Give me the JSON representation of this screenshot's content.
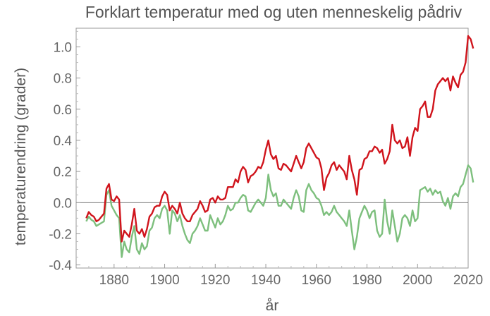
{
  "chart_data": {
    "type": "line",
    "title": "Forklart temperatur med og uten menneskelig pådriv",
    "xlabel": "år",
    "ylabel": "temperaturendring (grader)",
    "xlim": [
      1865,
      2020
    ],
    "ylim": [
      -0.42,
      1.12
    ],
    "xticks": [
      1880,
      1900,
      1920,
      1940,
      1960,
      1980,
      2000,
      2020
    ],
    "xtick_labels": [
      "1880",
      "1900",
      "1920",
      "1940",
      "1960",
      "1980",
      "2000",
      "2020"
    ],
    "yticks": [
      -0.4,
      -0.2,
      0.0,
      0.2,
      0.4,
      0.6,
      0.8,
      1.0
    ],
    "ytick_labels": [
      "-0.4",
      "-0.2",
      "0.0",
      "0.2",
      "0.4",
      "0.6",
      "0.8",
      "1.0"
    ],
    "zero_line": true,
    "grid": false,
    "series": [
      {
        "color": "#d0141c",
        "points": [
          [
            1869,
            -0.1
          ],
          [
            1870,
            -0.06
          ],
          [
            1871,
            -0.08
          ],
          [
            1872,
            -0.09
          ],
          [
            1873,
            -0.12
          ],
          [
            1874,
            -0.11
          ],
          [
            1875,
            -0.09
          ],
          [
            1876,
            -0.07
          ],
          [
            1877,
            0.09
          ],
          [
            1878,
            0.12
          ],
          [
            1879,
            0.02
          ],
          [
            1880,
            0.01
          ],
          [
            1881,
            0.04
          ],
          [
            1882,
            0.02
          ],
          [
            1883,
            -0.25
          ],
          [
            1884,
            -0.18
          ],
          [
            1885,
            -0.2
          ],
          [
            1886,
            -0.22
          ],
          [
            1887,
            -0.14
          ],
          [
            1888,
            -0.04
          ],
          [
            1889,
            -0.18
          ],
          [
            1890,
            -0.2
          ],
          [
            1891,
            -0.17
          ],
          [
            1892,
            -0.22
          ],
          [
            1893,
            -0.17
          ],
          [
            1894,
            -0.09
          ],
          [
            1895,
            -0.07
          ],
          [
            1896,
            -0.03
          ],
          [
            1897,
            -0.02
          ],
          [
            1898,
            -0.02
          ],
          [
            1899,
            0.04
          ],
          [
            1900,
            0.07
          ],
          [
            1901,
            0.05
          ],
          [
            1902,
            -0.05
          ],
          [
            1903,
            -0.02
          ],
          [
            1904,
            -0.04
          ],
          [
            1905,
            -0.07
          ],
          [
            1906,
            0.0
          ],
          [
            1907,
            -0.07
          ],
          [
            1908,
            -0.1
          ],
          [
            1909,
            -0.12
          ],
          [
            1910,
            -0.12
          ],
          [
            1911,
            -0.08
          ],
          [
            1912,
            -0.06
          ],
          [
            1913,
            -0.04
          ],
          [
            1914,
            0.01
          ],
          [
            1915,
            -0.02
          ],
          [
            1916,
            -0.06
          ],
          [
            1917,
            -0.05
          ],
          [
            1918,
            0.02
          ],
          [
            1919,
            0.03
          ],
          [
            1920,
            0.0
          ],
          [
            1921,
            0.04
          ],
          [
            1922,
            0.02
          ],
          [
            1923,
            0.02
          ],
          [
            1924,
            0.03
          ],
          [
            1925,
            0.1
          ],
          [
            1926,
            0.1
          ],
          [
            1927,
            0.1
          ],
          [
            1928,
            0.15
          ],
          [
            1929,
            0.13
          ],
          [
            1930,
            0.2
          ],
          [
            1931,
            0.23
          ],
          [
            1932,
            0.21
          ],
          [
            1933,
            0.13
          ],
          [
            1934,
            0.17
          ],
          [
            1935,
            0.18
          ],
          [
            1936,
            0.2
          ],
          [
            1937,
            0.23
          ],
          [
            1938,
            0.22
          ],
          [
            1939,
            0.26
          ],
          [
            1940,
            0.34
          ],
          [
            1941,
            0.4
          ],
          [
            1942,
            0.31
          ],
          [
            1943,
            0.28
          ],
          [
            1944,
            0.3
          ],
          [
            1945,
            0.22
          ],
          [
            1946,
            0.21
          ],
          [
            1947,
            0.25
          ],
          [
            1948,
            0.24
          ],
          [
            1949,
            0.22
          ],
          [
            1950,
            0.2
          ],
          [
            1951,
            0.25
          ],
          [
            1952,
            0.3
          ],
          [
            1953,
            0.26
          ],
          [
            1954,
            0.22
          ],
          [
            1955,
            0.26
          ],
          [
            1956,
            0.35
          ],
          [
            1957,
            0.38
          ],
          [
            1958,
            0.35
          ],
          [
            1959,
            0.32
          ],
          [
            1960,
            0.29
          ],
          [
            1961,
            0.28
          ],
          [
            1962,
            0.22
          ],
          [
            1963,
            0.08
          ],
          [
            1964,
            0.16
          ],
          [
            1965,
            0.19
          ],
          [
            1966,
            0.24
          ],
          [
            1967,
            0.26
          ],
          [
            1968,
            0.21
          ],
          [
            1969,
            0.24
          ],
          [
            1970,
            0.22
          ],
          [
            1971,
            0.2
          ],
          [
            1972,
            0.15
          ],
          [
            1973,
            0.3
          ],
          [
            1974,
            0.21
          ],
          [
            1975,
            0.15
          ],
          [
            1976,
            0.05
          ],
          [
            1977,
            0.21
          ],
          [
            1978,
            0.22
          ],
          [
            1979,
            0.28
          ],
          [
            1980,
            0.29
          ],
          [
            1981,
            0.33
          ],
          [
            1982,
            0.33
          ],
          [
            1983,
            0.36
          ],
          [
            1984,
            0.35
          ],
          [
            1985,
            0.32
          ],
          [
            1986,
            0.34
          ],
          [
            1987,
            0.25
          ],
          [
            1988,
            0.28
          ],
          [
            1989,
            0.33
          ],
          [
            1990,
            0.5
          ],
          [
            1991,
            0.4
          ],
          [
            1992,
            0.38
          ],
          [
            1993,
            0.4
          ],
          [
            1994,
            0.35
          ],
          [
            1995,
            0.36
          ],
          [
            1996,
            0.42
          ],
          [
            1997,
            0.3
          ],
          [
            1998,
            0.42
          ],
          [
            1999,
            0.48
          ],
          [
            2000,
            0.46
          ],
          [
            2001,
            0.6
          ],
          [
            2002,
            0.62
          ],
          [
            2003,
            0.65
          ],
          [
            2004,
            0.55
          ],
          [
            2005,
            0.55
          ],
          [
            2006,
            0.6
          ],
          [
            2007,
            0.72
          ],
          [
            2008,
            0.76
          ],
          [
            2009,
            0.78
          ],
          [
            2010,
            0.8
          ],
          [
            2011,
            0.78
          ],
          [
            2012,
            0.8
          ],
          [
            2013,
            0.72
          ],
          [
            2014,
            0.81
          ],
          [
            2015,
            0.77
          ],
          [
            2016,
            0.74
          ],
          [
            2017,
            0.82
          ],
          [
            2018,
            0.84
          ],
          [
            2019,
            0.9
          ],
          [
            2020,
            1.07
          ],
          [
            2021,
            1.05
          ],
          [
            2022,
            0.99
          ]
        ]
      },
      {
        "color": "#7dbf7d",
        "points": [
          [
            1869,
            -0.12
          ],
          [
            1870,
            -0.09
          ],
          [
            1871,
            -0.11
          ],
          [
            1872,
            -0.12
          ],
          [
            1873,
            -0.15
          ],
          [
            1874,
            -0.14
          ],
          [
            1875,
            -0.13
          ],
          [
            1876,
            -0.12
          ],
          [
            1877,
            0.05
          ],
          [
            1878,
            0.08
          ],
          [
            1879,
            -0.02
          ],
          [
            1880,
            -0.05
          ],
          [
            1881,
            -0.08
          ],
          [
            1882,
            -0.1
          ],
          [
            1883,
            -0.35
          ],
          [
            1884,
            -0.25
          ],
          [
            1885,
            -0.3
          ],
          [
            1886,
            -0.32
          ],
          [
            1887,
            -0.22
          ],
          [
            1888,
            -0.15
          ],
          [
            1889,
            -0.3
          ],
          [
            1890,
            -0.33
          ],
          [
            1891,
            -0.26
          ],
          [
            1892,
            -0.3
          ],
          [
            1893,
            -0.28
          ],
          [
            1894,
            -0.18
          ],
          [
            1895,
            -0.16
          ],
          [
            1896,
            -0.1
          ],
          [
            1897,
            -0.08
          ],
          [
            1898,
            -0.1
          ],
          [
            1899,
            -0.04
          ],
          [
            1900,
            -0.02
          ],
          [
            1901,
            -0.05
          ],
          [
            1902,
            -0.2
          ],
          [
            1903,
            -0.05
          ],
          [
            1904,
            -0.07
          ],
          [
            1905,
            -0.12
          ],
          [
            1906,
            -0.08
          ],
          [
            1907,
            -0.15
          ],
          [
            1908,
            -0.2
          ],
          [
            1909,
            -0.24
          ],
          [
            1910,
            -0.26
          ],
          [
            1911,
            -0.2
          ],
          [
            1912,
            -0.18
          ],
          [
            1913,
            -0.15
          ],
          [
            1914,
            -0.1
          ],
          [
            1915,
            -0.14
          ],
          [
            1916,
            -0.18
          ],
          [
            1917,
            -0.18
          ],
          [
            1918,
            -0.08
          ],
          [
            1919,
            -0.12
          ],
          [
            1920,
            -0.16
          ],
          [
            1921,
            -0.1
          ],
          [
            1922,
            -0.14
          ],
          [
            1923,
            -0.12
          ],
          [
            1924,
            -0.08
          ],
          [
            1925,
            -0.02
          ],
          [
            1926,
            -0.05
          ],
          [
            1927,
            -0.04
          ],
          [
            1928,
            0.0
          ],
          [
            1929,
            0.0
          ],
          [
            1930,
            0.03
          ],
          [
            1931,
            0.05
          ],
          [
            1932,
            0.04
          ],
          [
            1933,
            -0.05
          ],
          [
            1934,
            -0.06
          ],
          [
            1935,
            -0.03
          ],
          [
            1936,
            0.0
          ],
          [
            1937,
            0.02
          ],
          [
            1938,
            0.0
          ],
          [
            1939,
            -0.02
          ],
          [
            1940,
            0.03
          ],
          [
            1941,
            0.18
          ],
          [
            1942,
            0.08
          ],
          [
            1943,
            0.04
          ],
          [
            1944,
            0.06
          ],
          [
            1945,
            -0.02
          ],
          [
            1946,
            -0.02
          ],
          [
            1947,
            0.02
          ],
          [
            1948,
            0.0
          ],
          [
            1949,
            -0.02
          ],
          [
            1950,
            -0.04
          ],
          [
            1951,
            0.03
          ],
          [
            1952,
            0.08
          ],
          [
            1953,
            0.04
          ],
          [
            1954,
            -0.05
          ],
          [
            1955,
            -0.06
          ],
          [
            1956,
            0.08
          ],
          [
            1957,
            0.12
          ],
          [
            1958,
            0.08
          ],
          [
            1959,
            0.06
          ],
          [
            1960,
            0.03
          ],
          [
            1961,
            0.02
          ],
          [
            1962,
            -0.02
          ],
          [
            1963,
            -0.08
          ],
          [
            1964,
            -0.06
          ],
          [
            1965,
            -0.08
          ],
          [
            1966,
            -0.06
          ],
          [
            1967,
            -0.02
          ],
          [
            1968,
            -0.06
          ],
          [
            1969,
            -0.08
          ],
          [
            1970,
            -0.1
          ],
          [
            1971,
            -0.12
          ],
          [
            1972,
            -0.15
          ],
          [
            1973,
            -0.05
          ],
          [
            1974,
            -0.18
          ],
          [
            1975,
            -0.3
          ],
          [
            1976,
            -0.22
          ],
          [
            1977,
            -0.1
          ],
          [
            1978,
            -0.06
          ],
          [
            1979,
            -0.02
          ],
          [
            1980,
            -0.05
          ],
          [
            1981,
            -0.1
          ],
          [
            1982,
            -0.06
          ],
          [
            1983,
            -0.05
          ],
          [
            1984,
            -0.18
          ],
          [
            1985,
            -0.22
          ],
          [
            1986,
            -0.2
          ],
          [
            1987,
            0.02
          ],
          [
            1988,
            -0.12
          ],
          [
            1989,
            -0.2
          ],
          [
            1990,
            -0.05
          ],
          [
            1991,
            -0.15
          ],
          [
            1992,
            -0.25
          ],
          [
            1993,
            -0.2
          ],
          [
            1994,
            -0.1
          ],
          [
            1995,
            -0.08
          ],
          [
            1996,
            -0.1
          ],
          [
            1997,
            -0.15
          ],
          [
            1998,
            -0.05
          ],
          [
            1999,
            -0.12
          ],
          [
            2000,
            -0.1
          ],
          [
            2001,
            0.08
          ],
          [
            2002,
            0.09
          ],
          [
            2003,
            0.1
          ],
          [
            2004,
            0.07
          ],
          [
            2005,
            0.09
          ],
          [
            2006,
            0.05
          ],
          [
            2007,
            0.08
          ],
          [
            2008,
            0.06
          ],
          [
            2009,
            0.07
          ],
          [
            2010,
            0.01
          ],
          [
            2011,
            -0.02
          ],
          [
            2012,
            0.03
          ],
          [
            2013,
            -0.04
          ],
          [
            2014,
            0.04
          ],
          [
            2015,
            0.06
          ],
          [
            2016,
            0.04
          ],
          [
            2017,
            0.1
          ],
          [
            2018,
            0.12
          ],
          [
            2019,
            0.18
          ],
          [
            2020,
            0.24
          ],
          [
            2021,
            0.22
          ],
          [
            2022,
            0.13
          ]
        ]
      }
    ]
  }
}
